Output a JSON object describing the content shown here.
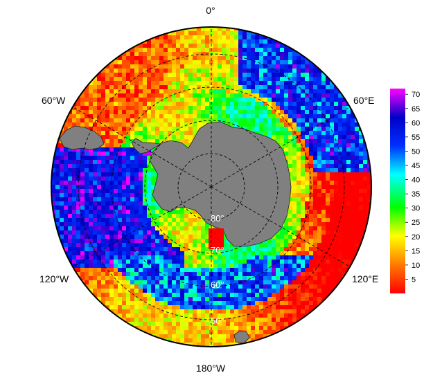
{
  "map": {
    "projection": "south-polar-stereographic",
    "longitude_labels": {
      "top": "0°",
      "upper_left": "60°W",
      "upper_right": "60°E",
      "lower_left": "120°W",
      "lower_right": "120°E",
      "bottom": "180°W"
    },
    "latitude_labels": [
      "80°",
      "70°",
      "60°",
      "50°"
    ],
    "land_color": "#808080",
    "grid_style": "dashed",
    "circle_color": "#000000"
  },
  "colorbar": {
    "min": 0,
    "max": 72,
    "ticks": [
      "5",
      "10",
      "15",
      "20",
      "25",
      "30",
      "35",
      "40",
      "45",
      "50",
      "55",
      "60",
      "65",
      "70"
    ],
    "tick_values": [
      5,
      10,
      15,
      20,
      25,
      30,
      35,
      40,
      45,
      50,
      55,
      60,
      65,
      70
    ],
    "palette": [
      "#ff0000",
      "#ff7a00",
      "#ffff00",
      "#00ff00",
      "#00ffff",
      "#0030ff",
      "#0000c8",
      "#ff00ff"
    ],
    "palette_stops": [
      0,
      0.14,
      0.28,
      0.42,
      0.58,
      0.72,
      0.86,
      1.0
    ]
  }
}
